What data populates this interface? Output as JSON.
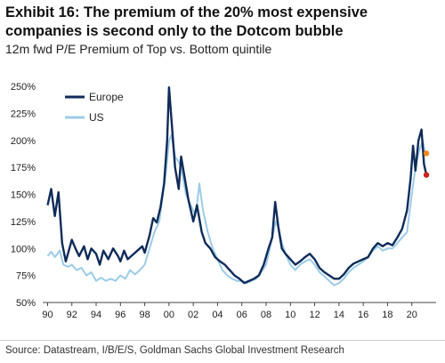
{
  "title": "Exhibit 16: The premium of the 20% most expensive companies is second only to the Dotcom bubble",
  "subtitle": "12m fwd P/E Premium of Top vs. Bottom quintile",
  "source": "Source: Datastream, I/B/E/S, Goldman Sachs Global Investment Research",
  "colors": {
    "europe": "#0f2b59",
    "us": "#9ccbe6",
    "dot_orange": "#f08a1e",
    "dot_red": "#cc2222"
  },
  "chart_data": {
    "type": "line",
    "ylim": [
      50,
      250
    ],
    "xlim": [
      1989.6,
      2022.0
    ],
    "y_ticks": [
      "50%",
      "75%",
      "100%",
      "125%",
      "150%",
      "175%",
      "200%",
      "225%",
      "250%"
    ],
    "y_tick_values": [
      50,
      75,
      100,
      125,
      150,
      175,
      200,
      225,
      250
    ],
    "x_ticks": [
      "90",
      "92",
      "94",
      "96",
      "98",
      "00",
      "02",
      "04",
      "06",
      "08",
      "10",
      "12",
      "14",
      "16",
      "18",
      "20"
    ],
    "x_tick_values": [
      1990,
      1992,
      1994,
      1996,
      1998,
      2000,
      2002,
      2004,
      2006,
      2008,
      2010,
      2012,
      2014,
      2016,
      2018,
      2020
    ],
    "legend_position": "top-left",
    "series": [
      {
        "name": "Europe",
        "color": "#0f2b59",
        "points": [
          [
            1990.0,
            140
          ],
          [
            1990.3,
            155
          ],
          [
            1990.6,
            130
          ],
          [
            1990.9,
            152
          ],
          [
            1991.2,
            105
          ],
          [
            1991.5,
            88
          ],
          [
            1991.8,
            100
          ],
          [
            1992.0,
            108
          ],
          [
            1992.3,
            100
          ],
          [
            1992.6,
            93
          ],
          [
            1993.0,
            102
          ],
          [
            1993.3,
            90
          ],
          [
            1993.6,
            100
          ],
          [
            1994.0,
            95
          ],
          [
            1994.3,
            85
          ],
          [
            1994.6,
            98
          ],
          [
            1995.0,
            90
          ],
          [
            1995.4,
            100
          ],
          [
            1995.8,
            93
          ],
          [
            1996.0,
            88
          ],
          [
            1996.3,
            98
          ],
          [
            1996.6,
            90
          ],
          [
            1997.0,
            94
          ],
          [
            1997.4,
            98
          ],
          [
            1997.8,
            102
          ],
          [
            1998.0,
            96
          ],
          [
            1998.4,
            112
          ],
          [
            1998.7,
            128
          ],
          [
            1999.0,
            124
          ],
          [
            1999.3,
            138
          ],
          [
            1999.6,
            160
          ],
          [
            1999.85,
            200
          ],
          [
            2000.0,
            249
          ],
          [
            2000.2,
            220
          ],
          [
            2000.5,
            175
          ],
          [
            2000.8,
            155
          ],
          [
            2001.0,
            185
          ],
          [
            2001.3,
            165
          ],
          [
            2001.6,
            145
          ],
          [
            2002.0,
            125
          ],
          [
            2002.3,
            140
          ],
          [
            2002.7,
            115
          ],
          [
            2003.0,
            105
          ],
          [
            2003.4,
            100
          ],
          [
            2003.8,
            92
          ],
          [
            2004.2,
            88
          ],
          [
            2004.6,
            85
          ],
          [
            2005.0,
            80
          ],
          [
            2005.4,
            75
          ],
          [
            2005.8,
            72
          ],
          [
            2006.2,
            68
          ],
          [
            2006.6,
            70
          ],
          [
            2007.0,
            72
          ],
          [
            2007.4,
            75
          ],
          [
            2007.8,
            85
          ],
          [
            2008.2,
            100
          ],
          [
            2008.5,
            110
          ],
          [
            2008.75,
            143
          ],
          [
            2009.0,
            120
          ],
          [
            2009.3,
            100
          ],
          [
            2009.6,
            95
          ],
          [
            2010.0,
            90
          ],
          [
            2010.4,
            85
          ],
          [
            2010.8,
            88
          ],
          [
            2011.2,
            92
          ],
          [
            2011.6,
            95
          ],
          [
            2012.0,
            90
          ],
          [
            2012.4,
            82
          ],
          [
            2012.8,
            78
          ],
          [
            2013.2,
            75
          ],
          [
            2013.6,
            72
          ],
          [
            2014.0,
            72
          ],
          [
            2014.4,
            76
          ],
          [
            2014.8,
            82
          ],
          [
            2015.2,
            86
          ],
          [
            2015.6,
            88
          ],
          [
            2016.0,
            90
          ],
          [
            2016.4,
            92
          ],
          [
            2016.8,
            100
          ],
          [
            2017.2,
            105
          ],
          [
            2017.6,
            102
          ],
          [
            2018.0,
            105
          ],
          [
            2018.4,
            103
          ],
          [
            2018.8,
            110
          ],
          [
            2019.2,
            118
          ],
          [
            2019.6,
            135
          ],
          [
            2019.9,
            165
          ],
          [
            2020.1,
            195
          ],
          [
            2020.3,
            172
          ],
          [
            2020.55,
            200
          ],
          [
            2020.8,
            210
          ],
          [
            2021.0,
            178
          ],
          [
            2021.2,
            168
          ]
        ]
      },
      {
        "name": "US",
        "color": "#9ccbe6",
        "points": [
          [
            1990.0,
            93
          ],
          [
            1990.3,
            97
          ],
          [
            1990.6,
            92
          ],
          [
            1991.0,
            98
          ],
          [
            1991.3,
            85
          ],
          [
            1991.7,
            83
          ],
          [
            1992.0,
            85
          ],
          [
            1992.4,
            80
          ],
          [
            1992.8,
            82
          ],
          [
            1993.2,
            75
          ],
          [
            1993.6,
            78
          ],
          [
            1994.0,
            70
          ],
          [
            1994.4,
            73
          ],
          [
            1994.8,
            70
          ],
          [
            1995.2,
            72
          ],
          [
            1995.6,
            70
          ],
          [
            1996.0,
            75
          ],
          [
            1996.4,
            72
          ],
          [
            1996.8,
            80
          ],
          [
            1997.2,
            76
          ],
          [
            1997.6,
            80
          ],
          [
            1998.0,
            85
          ],
          [
            1998.4,
            100
          ],
          [
            1998.8,
            115
          ],
          [
            1999.2,
            125
          ],
          [
            1999.5,
            150
          ],
          [
            1999.8,
            175
          ],
          [
            2000.0,
            200
          ],
          [
            2000.2,
            205
          ],
          [
            2000.5,
            185
          ],
          [
            2000.8,
            180
          ],
          [
            2001.0,
            175
          ],
          [
            2001.4,
            150
          ],
          [
            2001.8,
            140
          ],
          [
            2002.2,
            130
          ],
          [
            2002.5,
            160
          ],
          [
            2002.8,
            135
          ],
          [
            2003.2,
            115
          ],
          [
            2003.6,
            100
          ],
          [
            2004.0,
            90
          ],
          [
            2004.4,
            80
          ],
          [
            2004.8,
            75
          ],
          [
            2005.2,
            72
          ],
          [
            2005.6,
            70
          ],
          [
            2006.0,
            70
          ],
          [
            2006.4,
            68
          ],
          [
            2006.8,
            70
          ],
          [
            2007.2,
            72
          ],
          [
            2007.6,
            78
          ],
          [
            2008.0,
            85
          ],
          [
            2008.4,
            105
          ],
          [
            2008.8,
            125
          ],
          [
            2009.0,
            120
          ],
          [
            2009.3,
            105
          ],
          [
            2009.6,
            95
          ],
          [
            2010.0,
            85
          ],
          [
            2010.4,
            80
          ],
          [
            2010.8,
            85
          ],
          [
            2011.2,
            88
          ],
          [
            2011.6,
            90
          ],
          [
            2012.0,
            85
          ],
          [
            2012.4,
            78
          ],
          [
            2012.8,
            74
          ],
          [
            2013.2,
            70
          ],
          [
            2013.6,
            66
          ],
          [
            2014.0,
            68
          ],
          [
            2014.4,
            72
          ],
          [
            2014.8,
            78
          ],
          [
            2015.2,
            82
          ],
          [
            2015.6,
            85
          ],
          [
            2016.0,
            88
          ],
          [
            2016.4,
            92
          ],
          [
            2016.8,
            98
          ],
          [
            2017.2,
            102
          ],
          [
            2017.6,
            98
          ],
          [
            2018.0,
            100
          ],
          [
            2018.4,
            100
          ],
          [
            2018.8,
            105
          ],
          [
            2019.2,
            110
          ],
          [
            2019.6,
            115
          ],
          [
            2020.0,
            150
          ],
          [
            2020.3,
            175
          ],
          [
            2020.6,
            190
          ],
          [
            2020.9,
            200
          ],
          [
            2021.1,
            188
          ],
          [
            2021.2,
            188
          ]
        ]
      }
    ],
    "end_markers": [
      {
        "series": "US",
        "x": 2021.2,
        "y": 188,
        "color": "#f08a1e"
      },
      {
        "series": "Europe",
        "x": 2021.2,
        "y": 168,
        "color": "#cc2222"
      }
    ]
  }
}
